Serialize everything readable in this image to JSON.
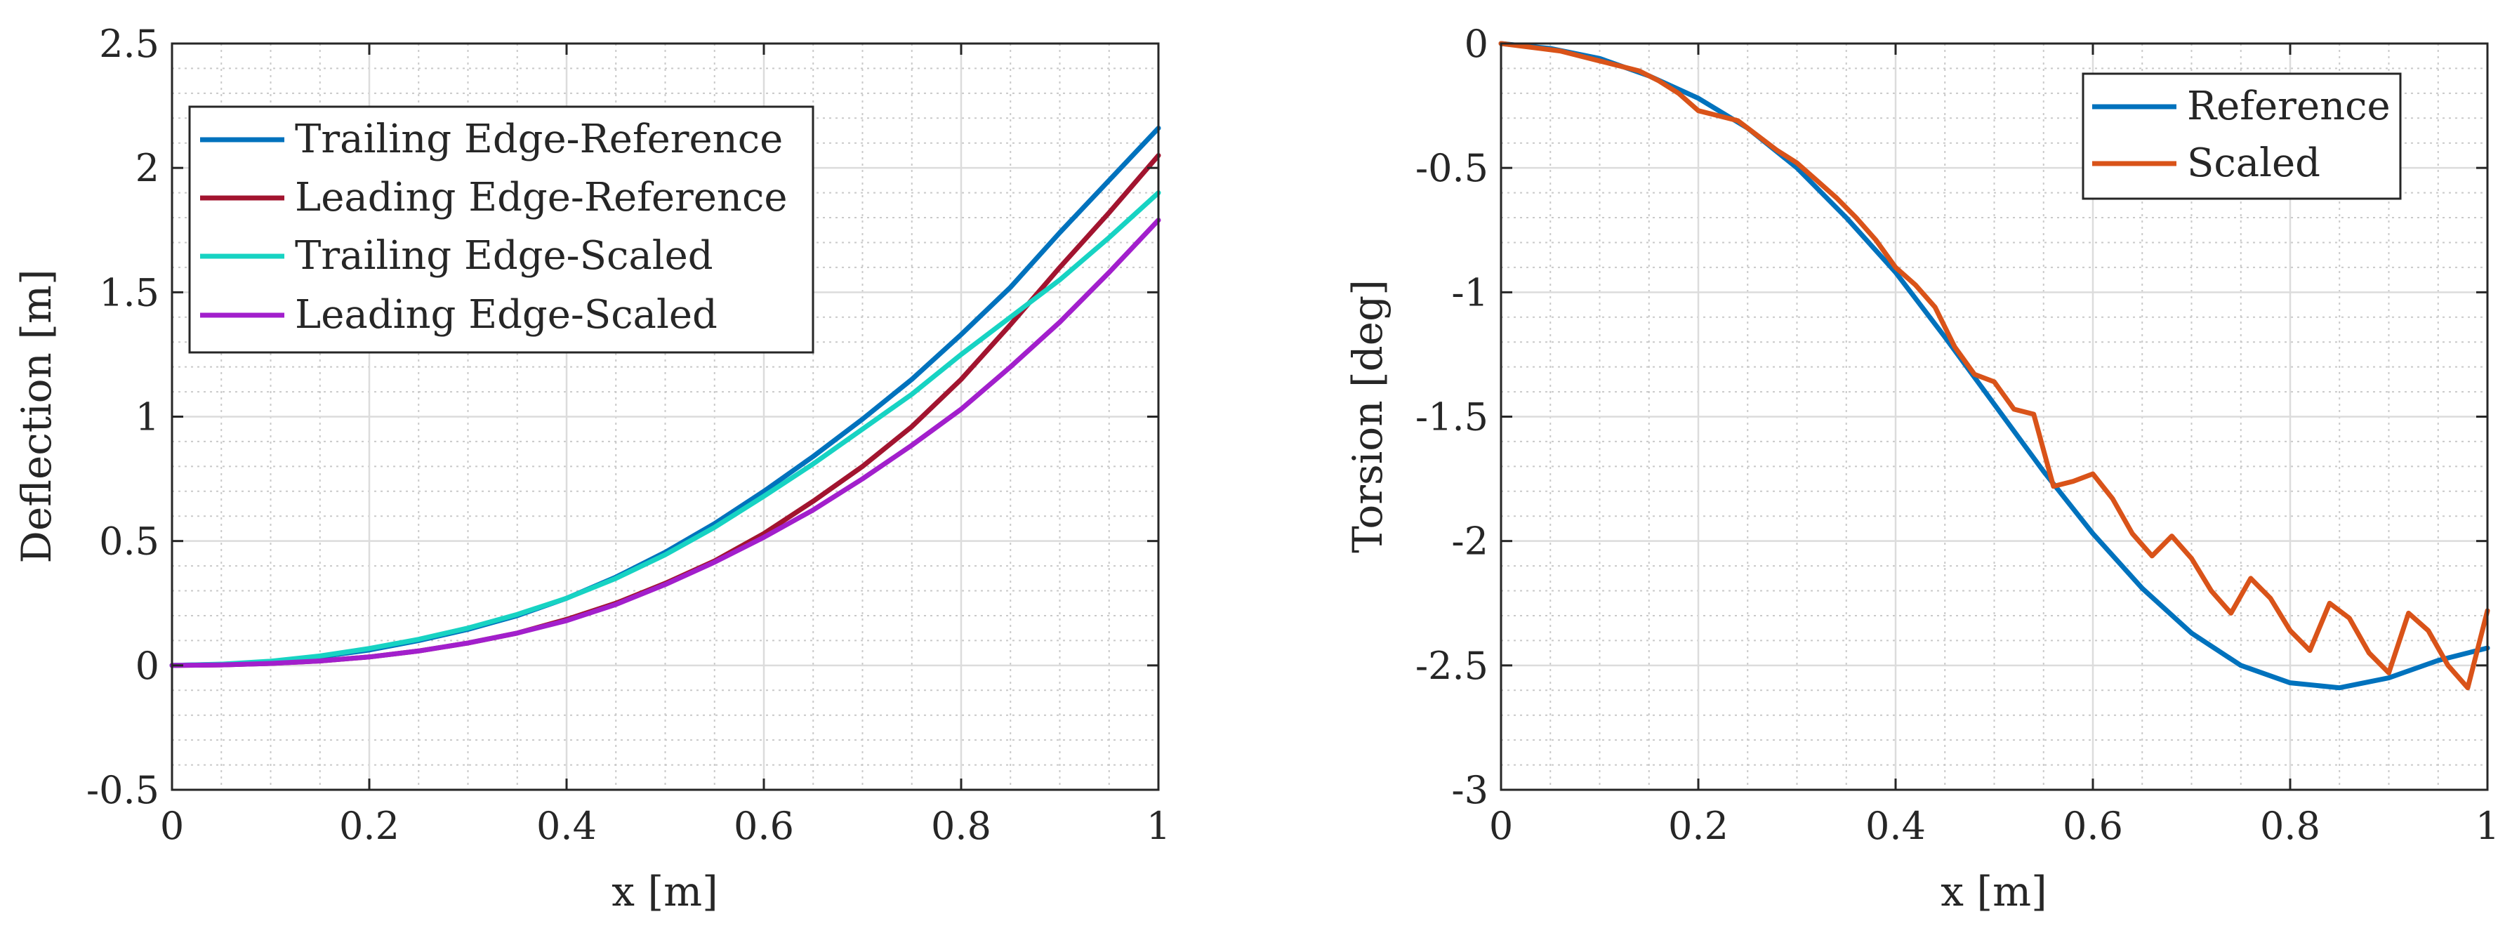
{
  "chart_data": [
    {
      "type": "line",
      "xlabel": "x [m]",
      "ylabel": "Deflection [m]",
      "xlim": [
        0,
        1
      ],
      "ylim": [
        -0.5,
        2.5
      ],
      "xticks": [
        0,
        0.2,
        0.4,
        0.6,
        0.8,
        1
      ],
      "xtick_labels": [
        "0",
        "0.2",
        "0.4",
        "0.6",
        "0.8",
        "1"
      ],
      "yticks": [
        -0.5,
        0,
        0.5,
        1,
        1.5,
        2,
        2.5
      ],
      "ytick_labels": [
        "-0.5",
        "0",
        "0.5",
        "1",
        "1.5",
        "2",
        "2.5"
      ],
      "grid": true,
      "minor_grid": true,
      "legend_position": "top-left",
      "x": [
        0,
        0.05,
        0.1,
        0.15,
        0.2,
        0.25,
        0.3,
        0.35,
        0.4,
        0.45,
        0.5,
        0.55,
        0.6,
        0.65,
        0.7,
        0.75,
        0.8,
        0.85,
        0.9,
        0.95,
        1
      ],
      "series": [
        {
          "name": "Trailing Edge-Reference",
          "color": "#0072BD",
          "values": [
            0,
            0.004,
            0.015,
            0.035,
            0.062,
            0.1,
            0.145,
            0.2,
            0.27,
            0.355,
            0.455,
            0.57,
            0.7,
            0.84,
            0.99,
            1.15,
            1.33,
            1.52,
            1.74,
            1.95,
            2.16
          ]
        },
        {
          "name": "Leading Edge-Reference",
          "color": "#A2142F",
          "values": [
            0,
            0.002,
            0.008,
            0.018,
            0.034,
            0.058,
            0.09,
            0.13,
            0.185,
            0.25,
            0.33,
            0.42,
            0.53,
            0.66,
            0.8,
            0.96,
            1.15,
            1.37,
            1.6,
            1.82,
            2.05
          ]
        },
        {
          "name": "Trailing Edge-Scaled",
          "color": "#17D3C3",
          "values": [
            0,
            0.005,
            0.017,
            0.038,
            0.068,
            0.105,
            0.15,
            0.205,
            0.27,
            0.35,
            0.445,
            0.555,
            0.68,
            0.81,
            0.95,
            1.09,
            1.25,
            1.4,
            1.55,
            1.72,
            1.9
          ]
        },
        {
          "name": "Leading Edge-Scaled",
          "color": "#A21FCC",
          "values": [
            0,
            0.002,
            0.008,
            0.018,
            0.034,
            0.058,
            0.09,
            0.13,
            0.18,
            0.245,
            0.325,
            0.415,
            0.515,
            0.625,
            0.75,
            0.885,
            1.03,
            1.2,
            1.38,
            1.58,
            1.79
          ]
        }
      ]
    },
    {
      "type": "line",
      "xlabel": "x [m]",
      "ylabel": "Torsion [deg]",
      "xlim": [
        0,
        1
      ],
      "ylim": [
        -3,
        0
      ],
      "xticks": [
        0,
        0.2,
        0.4,
        0.6,
        0.8,
        1
      ],
      "xtick_labels": [
        "0",
        "0.2",
        "0.4",
        "0.6",
        "0.8",
        "1"
      ],
      "yticks": [
        -3,
        -2.5,
        -2,
        -1.5,
        -1,
        -0.5,
        0
      ],
      "ytick_labels": [
        "-3",
        "-2.5",
        "-2",
        "-1.5",
        "-1",
        "-0.5",
        "0"
      ],
      "grid": true,
      "minor_grid": true,
      "legend_position": "top-right",
      "series": [
        {
          "name": "Reference",
          "color": "#0072BD",
          "x": [
            0,
            0.05,
            0.1,
            0.15,
            0.2,
            0.25,
            0.3,
            0.35,
            0.4,
            0.45,
            0.5,
            0.55,
            0.6,
            0.65,
            0.7,
            0.75,
            0.8,
            0.85,
            0.9,
            0.95,
            1
          ],
          "values": [
            0,
            -0.02,
            -0.06,
            -0.13,
            -0.22,
            -0.34,
            -0.5,
            -0.7,
            -0.92,
            -1.18,
            -1.45,
            -1.72,
            -1.97,
            -2.19,
            -2.37,
            -2.5,
            -2.57,
            -2.59,
            -2.55,
            -2.48,
            -2.43
          ]
        },
        {
          "name": "Scaled",
          "color": "#D95319",
          "x": [
            0,
            0.02,
            0.04,
            0.06,
            0.08,
            0.1,
            0.12,
            0.14,
            0.16,
            0.18,
            0.2,
            0.22,
            0.24,
            0.26,
            0.28,
            0.3,
            0.32,
            0.34,
            0.36,
            0.38,
            0.4,
            0.42,
            0.44,
            0.46,
            0.48,
            0.5,
            0.52,
            0.54,
            0.56,
            0.58,
            0.6,
            0.62,
            0.64,
            0.66,
            0.68,
            0.7,
            0.72,
            0.74,
            0.76,
            0.78,
            0.8,
            0.82,
            0.84,
            0.86,
            0.88,
            0.9,
            0.92,
            0.94,
            0.96,
            0.98,
            1
          ],
          "values": [
            0,
            -0.01,
            -0.02,
            -0.03,
            -0.05,
            -0.07,
            -0.09,
            -0.11,
            -0.15,
            -0.2,
            -0.27,
            -0.29,
            -0.31,
            -0.37,
            -0.43,
            -0.48,
            -0.55,
            -0.62,
            -0.7,
            -0.79,
            -0.9,
            -0.97,
            -1.06,
            -1.22,
            -1.33,
            -1.36,
            -1.47,
            -1.49,
            -1.78,
            -1.76,
            -1.73,
            -1.83,
            -1.97,
            -2.06,
            -1.98,
            -2.07,
            -2.2,
            -2.29,
            -2.15,
            -2.23,
            -2.36,
            -2.44,
            -2.25,
            -2.31,
            -2.45,
            -2.53,
            -2.29,
            -2.36,
            -2.5,
            -2.59,
            -2.28
          ]
        }
      ]
    }
  ]
}
